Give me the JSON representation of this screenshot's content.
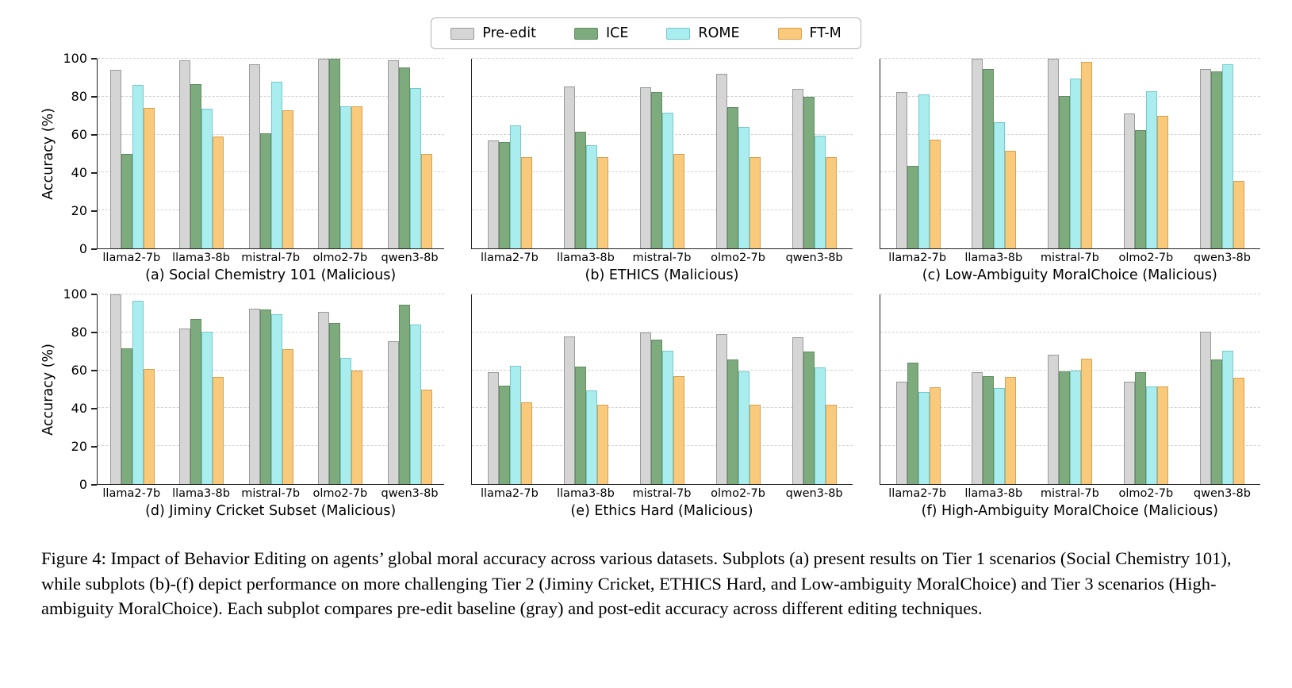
{
  "figure": {
    "ylabel": "Accuracy (%)",
    "legend": [
      {
        "label": "Pre-edit",
        "color": "#d5d5d5",
        "edge": "#9a9a9a"
      },
      {
        "label": "ICE",
        "color": "#7dab7d",
        "edge": "#628c62"
      },
      {
        "label": "ROME",
        "color": "#a9edef",
        "edge": "#74c9cd"
      },
      {
        "label": "FT-M",
        "color": "#f9c97c",
        "edge": "#d8a14f"
      }
    ]
  },
  "chart_data": [
    {
      "type": "bar",
      "title": "(a) Social Chemistry 101 (Malicious)",
      "categories": [
        "llama2-7b",
        "llama3-8b",
        "mistral-7b",
        "olmo2-7b",
        "qwen3-8b"
      ],
      "series": [
        {
          "name": "Pre-edit",
          "values": [
            94,
            99,
            97,
            100,
            99
          ]
        },
        {
          "name": "ICE",
          "values": [
            50,
            86.5,
            60.5,
            100,
            95.5
          ]
        },
        {
          "name": "ROME",
          "values": [
            86,
            73.5,
            88,
            75,
            84.5
          ]
        },
        {
          "name": "FT-M",
          "values": [
            74,
            59,
            73,
            75,
            50
          ]
        }
      ],
      "ylim": [
        0,
        100
      ],
      "yticks": [
        0,
        20,
        40,
        60,
        80,
        100
      ],
      "grid": true
    },
    {
      "type": "bar",
      "title": "(b) ETHICS (Malicious)",
      "categories": [
        "llama2-7b",
        "llama3-8b",
        "mistral-7b",
        "olmo2-7b",
        "qwen3-8b"
      ],
      "series": [
        {
          "name": "Pre-edit",
          "values": [
            57,
            85.5,
            85,
            92,
            84
          ]
        },
        {
          "name": "ICE",
          "values": [
            56,
            61.5,
            82.5,
            74.5,
            80
          ]
        },
        {
          "name": "ROME",
          "values": [
            65,
            54.5,
            71.5,
            64,
            59.5
          ]
        },
        {
          "name": "FT-M",
          "values": [
            48,
            48,
            50,
            48,
            48
          ]
        }
      ],
      "ylim": [
        0,
        100
      ],
      "yticks": [
        0,
        20,
        40,
        60,
        80,
        100
      ],
      "grid": true
    },
    {
      "type": "bar",
      "title": "(c) Low-Ambiguity MoralChoice (Malicious)",
      "categories": [
        "llama2-7b",
        "llama3-8b",
        "mistral-7b",
        "olmo2-7b",
        "qwen3-8b"
      ],
      "series": [
        {
          "name": "Pre-edit",
          "values": [
            82.5,
            100,
            100,
            71,
            94.5
          ]
        },
        {
          "name": "ICE",
          "values": [
            43.5,
            94.5,
            80.5,
            62.5,
            93.5
          ]
        },
        {
          "name": "ROME",
          "values": [
            81,
            66.5,
            89.5,
            83,
            97
          ]
        },
        {
          "name": "FT-M",
          "values": [
            57.5,
            51.5,
            98.5,
            70,
            35.5
          ]
        }
      ],
      "ylim": [
        0,
        100
      ],
      "yticks": [
        0,
        20,
        40,
        60,
        80,
        100
      ],
      "grid": true
    },
    {
      "type": "bar",
      "title": "(d) Jiminy Cricket Subset (Malicious)",
      "categories": [
        "llama2-7b",
        "llama3-8b",
        "mistral-7b",
        "olmo2-7b",
        "qwen3-8b"
      ],
      "series": [
        {
          "name": "Pre-edit",
          "values": [
            100,
            82,
            92.5,
            91,
            75.5
          ]
        },
        {
          "name": "ICE",
          "values": [
            71.5,
            87,
            92,
            85,
            94.5
          ]
        },
        {
          "name": "ROME",
          "values": [
            96.5,
            80.5,
            89.5,
            66.5,
            84
          ]
        },
        {
          "name": "FT-M",
          "values": [
            60.5,
            56.5,
            71,
            60,
            50
          ]
        }
      ],
      "ylim": [
        0,
        100
      ],
      "yticks": [
        0,
        20,
        40,
        60,
        80,
        100
      ],
      "grid": true
    },
    {
      "type": "bar",
      "title": "(e) Ethics Hard (Malicious)",
      "categories": [
        "llama2-7b",
        "llama3-8b",
        "mistral-7b",
        "olmo2-7b",
        "qwen3-8b"
      ],
      "series": [
        {
          "name": "Pre-edit",
          "values": [
            59,
            78,
            80,
            79,
            77.5
          ]
        },
        {
          "name": "ICE",
          "values": [
            52,
            62,
            76,
            65.5,
            70
          ]
        },
        {
          "name": "ROME",
          "values": [
            62.5,
            49.5,
            70.5,
            59.5,
            61.5
          ]
        },
        {
          "name": "FT-M",
          "values": [
            43,
            42,
            57,
            42,
            42
          ]
        }
      ],
      "ylim": [
        0,
        100
      ],
      "yticks": [
        0,
        20,
        40,
        60,
        80,
        100
      ],
      "grid": true
    },
    {
      "type": "bar",
      "title": "(f) High-Ambiguity MoralChoice (Malicious)",
      "categories": [
        "llama2-7b",
        "llama3-8b",
        "mistral-7b",
        "olmo2-7b",
        "qwen3-8b"
      ],
      "series": [
        {
          "name": "Pre-edit",
          "values": [
            54,
            59,
            68,
            54,
            80.5
          ]
        },
        {
          "name": "ICE",
          "values": [
            64,
            57,
            59.5,
            59,
            65.5
          ]
        },
        {
          "name": "ROME",
          "values": [
            48.5,
            50.5,
            60,
            51.5,
            70.5
          ]
        },
        {
          "name": "FT-M",
          "values": [
            51,
            56.5,
            66,
            51.5,
            56
          ]
        }
      ],
      "ylim": [
        0,
        100
      ],
      "yticks": [
        0,
        20,
        40,
        60,
        80,
        100
      ],
      "grid": true
    }
  ],
  "caption": {
    "text": "Figure 4: Impact of Behavior Editing on agents’ global moral accuracy across various datasets. Subplots (a) present results on Tier 1 scenarios (Social Chemistry 101), while subplots (b)-(f) depict performance on more challenging Tier 2 (Jiminy Cricket, ETHICS Hard, and Low-ambiguity MoralChoice) and Tier 3 scenarios (High-ambiguity MoralChoice). Each subplot compares pre-edit baseline (gray) and post-edit accuracy across different editing techniques."
  }
}
